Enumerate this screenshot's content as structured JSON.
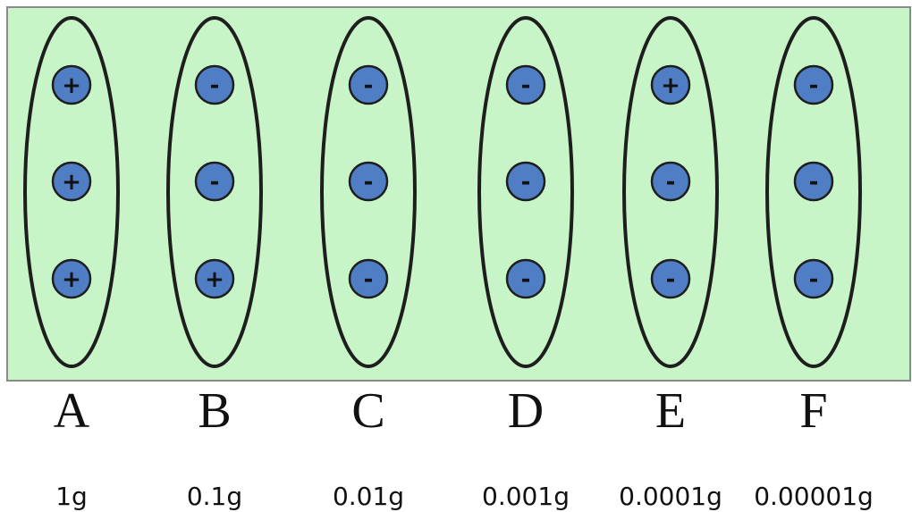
{
  "groups": [
    {
      "label": "A",
      "mass": "1g",
      "charges": [
        "+",
        "+",
        "+"
      ]
    },
    {
      "label": "B",
      "mass": "0.1g",
      "charges": [
        "-",
        "-",
        "+"
      ]
    },
    {
      "label": "C",
      "mass": "0.01g",
      "charges": [
        "-",
        "-",
        "-"
      ]
    },
    {
      "label": "D",
      "mass": "0.001g",
      "charges": [
        "-",
        "-",
        "-"
      ]
    },
    {
      "label": "E",
      "mass": "0.0001g",
      "charges": [
        "+",
        "-",
        "-"
      ]
    },
    {
      "label": "F",
      "mass": "0.00001g",
      "charges": [
        "-",
        "-",
        "-"
      ]
    }
  ],
  "colors": {
    "panel": "#c8f5c8",
    "charge": "#4f7ec4",
    "outline": "#1e1e1e"
  }
}
